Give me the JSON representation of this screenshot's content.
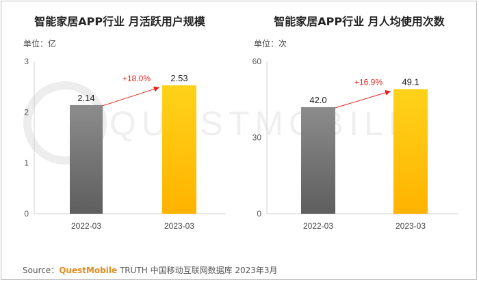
{
  "source": {
    "prefix": "Source：",
    "brand": "QuestMobile",
    "rest": "TRUTH 中国移动互联网数据库 2023年3月"
  },
  "watermark": "QUESTMOBILE",
  "colors": {
    "bar_2022": "#7a7a7a",
    "bar_2023": "#ffc400",
    "growth": "#e6211a"
  },
  "chart_data": [
    {
      "type": "bar",
      "title": "智能家居APP行业 月活跃用户规模",
      "unit_label": "单位：亿",
      "categories": [
        "2022-03",
        "2023-03"
      ],
      "values": [
        2.14,
        2.53
      ],
      "value_labels": [
        "2.14",
        "2.53"
      ],
      "ylim": [
        0,
        3
      ],
      "yticks": [
        "0",
        "1",
        "2",
        "3"
      ],
      "annotation": "+18.0%",
      "grid": false,
      "legend": "none"
    },
    {
      "type": "bar",
      "title": "智能家居APP行业 月人均使用次数",
      "unit_label": "单位：次",
      "categories": [
        "2022-03",
        "2023-03"
      ],
      "values": [
        42.0,
        49.1
      ],
      "value_labels": [
        "42.0",
        "49.1"
      ],
      "ylim": [
        0,
        60
      ],
      "yticks": [
        "0",
        "30",
        "60"
      ],
      "annotation": "+16.9%",
      "grid": false,
      "legend": "none"
    }
  ]
}
